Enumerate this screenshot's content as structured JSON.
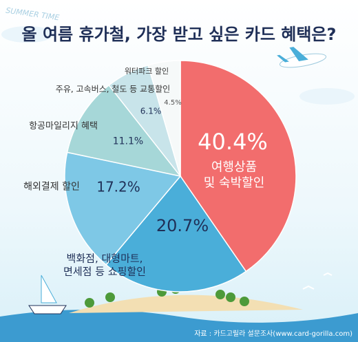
{
  "chart_data": {
    "type": "pie",
    "title": "올 여름 휴가철, 가장 받고 싶은 카드 혜택은?",
    "subtitle": "SUMMER TIME",
    "categories": [
      "여행상품\n및 숙박할인",
      "백화점, 대형마트,\n면세점 등 쇼핑할인",
      "해외결제 할인",
      "항공마일리지 혜택",
      "주유, 고속버스, 철도 등 교통할인",
      "워터파크 할인"
    ],
    "values": [
      40.4,
      20.7,
      17.2,
      11.1,
      6.1,
      4.5
    ],
    "value_labels": [
      "40.4%",
      "20.7%",
      "17.2%",
      "11.1%",
      "6.1%",
      "4.5%"
    ],
    "colors": [
      "#f26d6d",
      "#4aaed9",
      "#7ec8e6",
      "#a6d7d8",
      "#c8e4ea",
      "#f6f9f9"
    ],
    "source": "자료 : 카드고릴라 설문조사(www.card-gorilla.com)"
  }
}
